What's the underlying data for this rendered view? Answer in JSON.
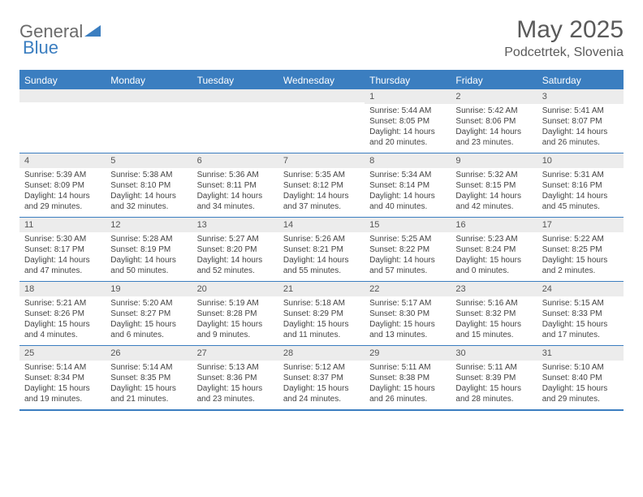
{
  "logo": {
    "text1": "General",
    "text2": "Blue"
  },
  "title": "May 2025",
  "subtitle": "Podcetrtek, Slovenia",
  "colors": {
    "accent": "#3b7ec0",
    "header_bg": "#3b7ec0",
    "daynum_bg": "#ececec",
    "text": "#444444",
    "title_color": "#5a5a5a"
  },
  "day_headers": [
    "Sunday",
    "Monday",
    "Tuesday",
    "Wednesday",
    "Thursday",
    "Friday",
    "Saturday"
  ],
  "weeks": [
    [
      {
        "n": "",
        "sr": "",
        "ss": "",
        "dl": ""
      },
      {
        "n": "",
        "sr": "",
        "ss": "",
        "dl": ""
      },
      {
        "n": "",
        "sr": "",
        "ss": "",
        "dl": ""
      },
      {
        "n": "",
        "sr": "",
        "ss": "",
        "dl": ""
      },
      {
        "n": "1",
        "sr": "Sunrise: 5:44 AM",
        "ss": "Sunset: 8:05 PM",
        "dl": "Daylight: 14 hours and 20 minutes."
      },
      {
        "n": "2",
        "sr": "Sunrise: 5:42 AM",
        "ss": "Sunset: 8:06 PM",
        "dl": "Daylight: 14 hours and 23 minutes."
      },
      {
        "n": "3",
        "sr": "Sunrise: 5:41 AM",
        "ss": "Sunset: 8:07 PM",
        "dl": "Daylight: 14 hours and 26 minutes."
      }
    ],
    [
      {
        "n": "4",
        "sr": "Sunrise: 5:39 AM",
        "ss": "Sunset: 8:09 PM",
        "dl": "Daylight: 14 hours and 29 minutes."
      },
      {
        "n": "5",
        "sr": "Sunrise: 5:38 AM",
        "ss": "Sunset: 8:10 PM",
        "dl": "Daylight: 14 hours and 32 minutes."
      },
      {
        "n": "6",
        "sr": "Sunrise: 5:36 AM",
        "ss": "Sunset: 8:11 PM",
        "dl": "Daylight: 14 hours and 34 minutes."
      },
      {
        "n": "7",
        "sr": "Sunrise: 5:35 AM",
        "ss": "Sunset: 8:12 PM",
        "dl": "Daylight: 14 hours and 37 minutes."
      },
      {
        "n": "8",
        "sr": "Sunrise: 5:34 AM",
        "ss": "Sunset: 8:14 PM",
        "dl": "Daylight: 14 hours and 40 minutes."
      },
      {
        "n": "9",
        "sr": "Sunrise: 5:32 AM",
        "ss": "Sunset: 8:15 PM",
        "dl": "Daylight: 14 hours and 42 minutes."
      },
      {
        "n": "10",
        "sr": "Sunrise: 5:31 AM",
        "ss": "Sunset: 8:16 PM",
        "dl": "Daylight: 14 hours and 45 minutes."
      }
    ],
    [
      {
        "n": "11",
        "sr": "Sunrise: 5:30 AM",
        "ss": "Sunset: 8:17 PM",
        "dl": "Daylight: 14 hours and 47 minutes."
      },
      {
        "n": "12",
        "sr": "Sunrise: 5:28 AM",
        "ss": "Sunset: 8:19 PM",
        "dl": "Daylight: 14 hours and 50 minutes."
      },
      {
        "n": "13",
        "sr": "Sunrise: 5:27 AM",
        "ss": "Sunset: 8:20 PM",
        "dl": "Daylight: 14 hours and 52 minutes."
      },
      {
        "n": "14",
        "sr": "Sunrise: 5:26 AM",
        "ss": "Sunset: 8:21 PM",
        "dl": "Daylight: 14 hours and 55 minutes."
      },
      {
        "n": "15",
        "sr": "Sunrise: 5:25 AM",
        "ss": "Sunset: 8:22 PM",
        "dl": "Daylight: 14 hours and 57 minutes."
      },
      {
        "n": "16",
        "sr": "Sunrise: 5:23 AM",
        "ss": "Sunset: 8:24 PM",
        "dl": "Daylight: 15 hours and 0 minutes."
      },
      {
        "n": "17",
        "sr": "Sunrise: 5:22 AM",
        "ss": "Sunset: 8:25 PM",
        "dl": "Daylight: 15 hours and 2 minutes."
      }
    ],
    [
      {
        "n": "18",
        "sr": "Sunrise: 5:21 AM",
        "ss": "Sunset: 8:26 PM",
        "dl": "Daylight: 15 hours and 4 minutes."
      },
      {
        "n": "19",
        "sr": "Sunrise: 5:20 AM",
        "ss": "Sunset: 8:27 PM",
        "dl": "Daylight: 15 hours and 6 minutes."
      },
      {
        "n": "20",
        "sr": "Sunrise: 5:19 AM",
        "ss": "Sunset: 8:28 PM",
        "dl": "Daylight: 15 hours and 9 minutes."
      },
      {
        "n": "21",
        "sr": "Sunrise: 5:18 AM",
        "ss": "Sunset: 8:29 PM",
        "dl": "Daylight: 15 hours and 11 minutes."
      },
      {
        "n": "22",
        "sr": "Sunrise: 5:17 AM",
        "ss": "Sunset: 8:30 PM",
        "dl": "Daylight: 15 hours and 13 minutes."
      },
      {
        "n": "23",
        "sr": "Sunrise: 5:16 AM",
        "ss": "Sunset: 8:32 PM",
        "dl": "Daylight: 15 hours and 15 minutes."
      },
      {
        "n": "24",
        "sr": "Sunrise: 5:15 AM",
        "ss": "Sunset: 8:33 PM",
        "dl": "Daylight: 15 hours and 17 minutes."
      }
    ],
    [
      {
        "n": "25",
        "sr": "Sunrise: 5:14 AM",
        "ss": "Sunset: 8:34 PM",
        "dl": "Daylight: 15 hours and 19 minutes."
      },
      {
        "n": "26",
        "sr": "Sunrise: 5:14 AM",
        "ss": "Sunset: 8:35 PM",
        "dl": "Daylight: 15 hours and 21 minutes."
      },
      {
        "n": "27",
        "sr": "Sunrise: 5:13 AM",
        "ss": "Sunset: 8:36 PM",
        "dl": "Daylight: 15 hours and 23 minutes."
      },
      {
        "n": "28",
        "sr": "Sunrise: 5:12 AM",
        "ss": "Sunset: 8:37 PM",
        "dl": "Daylight: 15 hours and 24 minutes."
      },
      {
        "n": "29",
        "sr": "Sunrise: 5:11 AM",
        "ss": "Sunset: 8:38 PM",
        "dl": "Daylight: 15 hours and 26 minutes."
      },
      {
        "n": "30",
        "sr": "Sunrise: 5:11 AM",
        "ss": "Sunset: 8:39 PM",
        "dl": "Daylight: 15 hours and 28 minutes."
      },
      {
        "n": "31",
        "sr": "Sunrise: 5:10 AM",
        "ss": "Sunset: 8:40 PM",
        "dl": "Daylight: 15 hours and 29 minutes."
      }
    ]
  ]
}
